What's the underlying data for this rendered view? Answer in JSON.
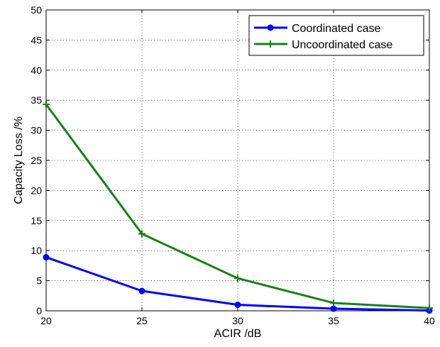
{
  "chart_data": {
    "type": "line",
    "title": "",
    "xlabel": "ACIR /dB",
    "ylabel": "Capacity Loss /%",
    "x": [
      20,
      25,
      30,
      35,
      40
    ],
    "xlim": [
      20,
      40
    ],
    "ylim": [
      0,
      50
    ],
    "xticks": [
      "20",
      "25",
      "30",
      "35",
      "40"
    ],
    "yticks": [
      "0",
      "5",
      "10",
      "15",
      "20",
      "25",
      "30",
      "35",
      "40",
      "45",
      "50"
    ],
    "grid": true,
    "legend_position": "top-right",
    "series": [
      {
        "name": "Coordinated case",
        "color": "#0000ff",
        "marker": "circle",
        "values": [
          8.9,
          3.3,
          1.0,
          0.35,
          0.05
        ]
      },
      {
        "name": "Uncoordinated case",
        "color": "#1a7f1a",
        "marker": "plus",
        "values": [
          34.3,
          12.8,
          5.4,
          1.3,
          0.45
        ]
      }
    ]
  }
}
